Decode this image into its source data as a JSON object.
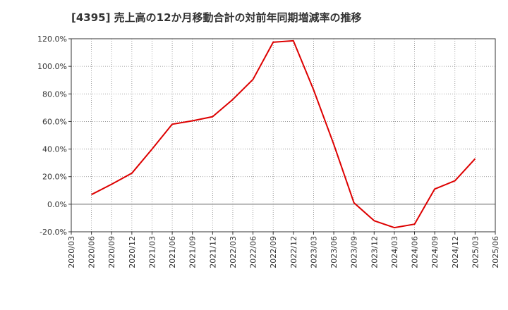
{
  "chart_data": {
    "type": "line",
    "title": "[4395]  売上高の12か月移動合計の対前年同期増減率の推移",
    "xlabel": "",
    "ylabel": "",
    "ylim": [
      -20,
      120
    ],
    "yticks": [
      120,
      100,
      80,
      60,
      40,
      20,
      0,
      -20
    ],
    "ytick_labels": [
      "120.0%",
      "100.0%",
      "80.0%",
      "60.0%",
      "40.0%",
      "20.0%",
      "0.0%",
      "-20.0%"
    ],
    "x_ticks": [
      "2020/03",
      "2020/06",
      "2020/09",
      "2020/12",
      "2021/03",
      "2021/06",
      "2021/09",
      "2021/12",
      "2022/03",
      "2022/06",
      "2022/09",
      "2022/12",
      "2023/03",
      "2023/06",
      "2023/09",
      "2023/12",
      "2024/03",
      "2024/06",
      "2024/09",
      "2024/12",
      "2025/03",
      "2025/06"
    ],
    "grid": true,
    "series": [
      {
        "name": "増減率",
        "color": "#dd0000",
        "x": [
          "2020/06",
          "2020/09",
          "2020/12",
          "2021/03",
          "2021/06",
          "2021/09",
          "2021/12",
          "2022/03",
          "2022/06",
          "2022/09",
          "2022/12",
          "2023/03",
          "2023/06",
          "2023/09",
          "2023/12",
          "2024/03",
          "2024/06",
          "2024/09",
          "2024/12",
          "2025/03"
        ],
        "values": [
          7.0,
          14.5,
          22.5,
          40.0,
          58.0,
          60.5,
          63.5,
          76.0,
          90.5,
          117.5,
          118.5,
          83.0,
          43.5,
          1.0,
          -12.0,
          -17.0,
          -14.5,
          11.0,
          17.0,
          33.0
        ]
      }
    ]
  }
}
